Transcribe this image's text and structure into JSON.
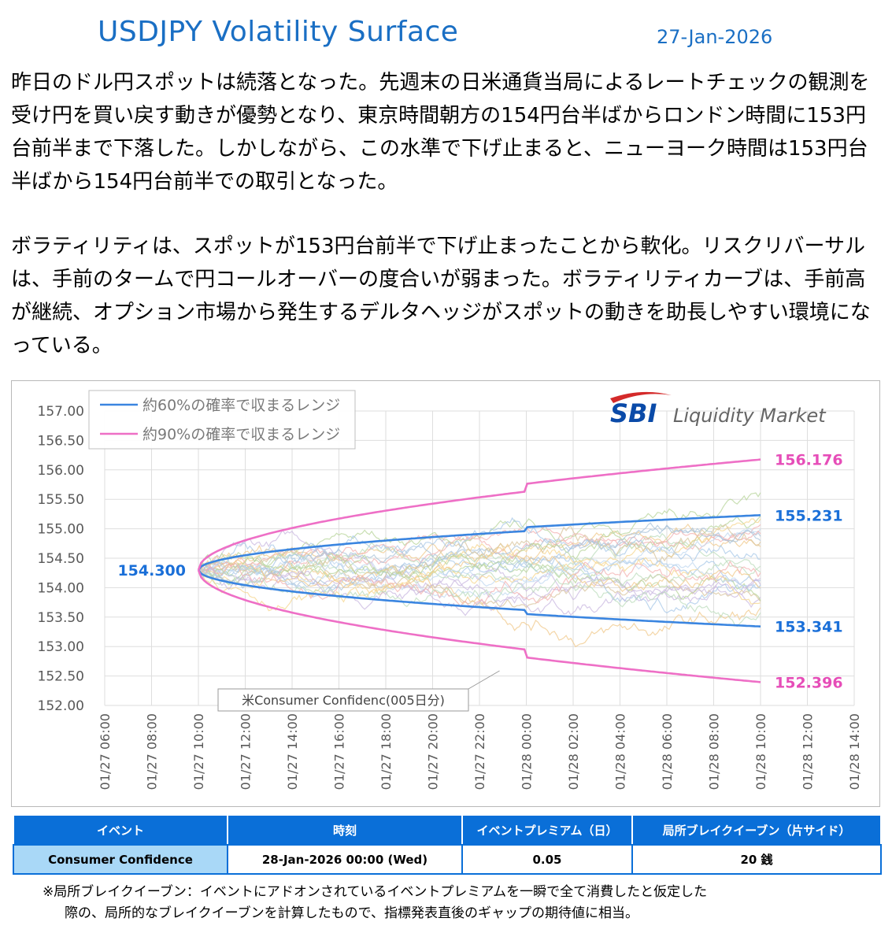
{
  "header": {
    "title": "USDJPY Volatility Surface",
    "date": "27-Jan-2026"
  },
  "paragraphs": [
    "昨日のドル円スポットは続落となった。先週末の日米通貨当局によるレートチェックの観測を受け円を買い戻す動きが優勢となり、東京時間朝方の154円台半ばからロンドン時間に153円台前半まで下落した。しかしながら、この水準で下げ止まると、ニューヨーク時間は153円台半ばから154円台前半での取引となった。",
    "ボラティリティは、スポットが153円台前半で下げ止まったことから軟化。リスクリバーサルは、手前のタームで円コールオーバーの度合いが弱まった。ボラティリティカーブは、手前高が継続、オプション市場から発生するデルタヘッジがスポットの動きを助長しやすい環境になっている。"
  ],
  "logo": {
    "mark": "SBI",
    "text": "Liquidity Market"
  },
  "chart_data": {
    "type": "line",
    "ylim": [
      152.0,
      157.0
    ],
    "yticks": [
      "157.00",
      "156.50",
      "156.00",
      "155.50",
      "155.00",
      "154.50",
      "154.00",
      "153.50",
      "153.00",
      "152.50",
      "152.00"
    ],
    "xticks": [
      "01/27 06:00",
      "01/27 08:00",
      "01/27 10:00",
      "01/27 12:00",
      "01/27 14:00",
      "01/27 16:00",
      "01/27 18:00",
      "01/27 20:00",
      "01/27 22:00",
      "01/28 00:00",
      "01/28 02:00",
      "01/28 04:00",
      "01/28 06:00",
      "01/28 08:00",
      "01/28 10:00",
      "01/28 12:00",
      "01/28 14:00"
    ],
    "spot": 154.3,
    "spot_label": "154.300",
    "start_index": 2,
    "end_index": 14,
    "event_index": 9,
    "series": [
      {
        "name": "約60%の確率で収まるレンジ",
        "color": "#3a85e0",
        "upper_end": 155.231,
        "lower_end": 153.341,
        "upper_label": "155.231",
        "lower_label": "153.341",
        "label_color": "#1a6fd8"
      },
      {
        "name": "約90%の確率で収まるレンジ",
        "color": "#ee6fc6",
        "upper_end": 156.176,
        "lower_end": 152.396,
        "upper_label": "156.176",
        "lower_label": "152.396",
        "label_color": "#e64db8"
      }
    ],
    "annotation": "米Consumer Confidenc(005日分)",
    "grid": true,
    "legend": "top-left"
  },
  "table": {
    "headers": [
      "イベント",
      "時刻",
      "イベントプレミアム（日）",
      "局所ブレイクイーブン（片サイド）"
    ],
    "rows": [
      [
        "Consumer Confidence",
        "28-Jan-2026 00:00 (Wed)",
        "0.05",
        "20 銭"
      ]
    ]
  },
  "footnote": [
    "※局所ブレイクイーブン：イベントにアドオンされているイベントプレミアムを一瞬で全て消費したと仮定した",
    "際の、局所的なブレイクイーブンを計算したもので、指標発表直後のギャップの期待値に相当。"
  ]
}
